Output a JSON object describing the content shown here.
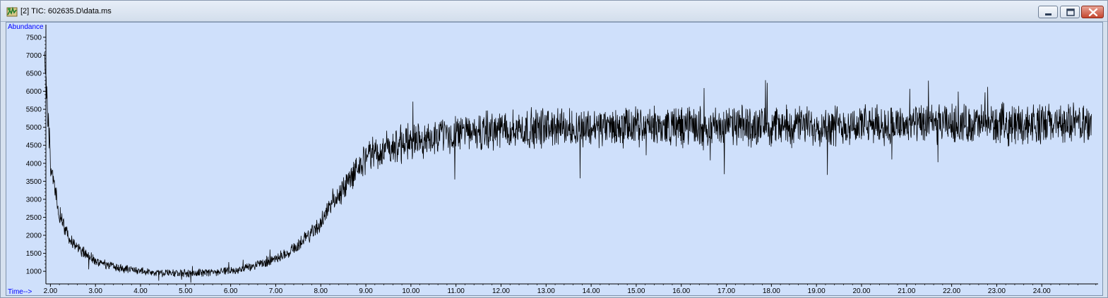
{
  "window": {
    "title": "[2] TIC: 602635.D\\data.ms",
    "icon": "chromatogram-app-icon",
    "buttons": [
      "minimize-icon",
      "maximize-icon",
      "close-icon"
    ]
  },
  "colors": {
    "plot_background": "#cfe0fb",
    "trace": "#000000",
    "axis_label": "#0000ff",
    "close_button": "#c4462f"
  },
  "chart_data": {
    "type": "line",
    "title": "",
    "ylabel": "Abundance",
    "xlabel": "Time-->",
    "xlim": [
      1.9,
      25.25
    ],
    "ylim": [
      650,
      7850
    ],
    "x_ticks": [
      2.0,
      3.0,
      4.0,
      5.0,
      6.0,
      7.0,
      8.0,
      9.0,
      10.0,
      11.0,
      12.0,
      13.0,
      14.0,
      15.0,
      16.0,
      17.0,
      18.0,
      19.0,
      20.0,
      21.0,
      22.0,
      23.0,
      24.0
    ],
    "x_tick_labels": [
      "2.00",
      "3.00",
      "4.00",
      "5.00",
      "6.00",
      "7.00",
      "8.00",
      "9.00",
      "10.00",
      "11.00",
      "12.00",
      "13.00",
      "14.00",
      "15.00",
      "16.00",
      "17.00",
      "18.00",
      "19.00",
      "20.00",
      "21.00",
      "22.00",
      "23.00",
      "24.00"
    ],
    "y_ticks": [
      1000,
      1500,
      2000,
      2500,
      3000,
      3500,
      4000,
      4500,
      5000,
      5500,
      6000,
      6500,
      7000,
      7500
    ],
    "y_tick_labels": [
      "1000",
      "1500",
      "2000",
      "2500",
      "3000",
      "3500",
      "4000",
      "4500",
      "5000",
      "5500",
      "6000",
      "6500",
      "7000",
      "7500"
    ],
    "grid": false,
    "series": [
      {
        "x": [
          1.87,
          1.95,
          2.0,
          2.1,
          2.2,
          2.35,
          2.5,
          2.75,
          3.0,
          3.25,
          3.5,
          3.75,
          4.0,
          4.25,
          4.5,
          4.75,
          5.0,
          5.25,
          5.5,
          5.75,
          6.0,
          6.25,
          6.5,
          6.75,
          7.0,
          7.25,
          7.5,
          7.75,
          8.0,
          8.25,
          8.5,
          8.75,
          9.0,
          9.25,
          9.5,
          9.75,
          10.0,
          10.5,
          11.0,
          11.5,
          12.0,
          12.5,
          13.0,
          13.5,
          14.0,
          15.0,
          16.0,
          17.0,
          18.0,
          19.0,
          20.0,
          21.0,
          22.0,
          23.0,
          24.0,
          25.1
        ],
        "y": [
          6800,
          5200,
          4000,
          3200,
          2600,
          2100,
          1800,
          1500,
          1300,
          1180,
          1100,
          1040,
          1000,
          970,
          960,
          950,
          950,
          955,
          970,
          990,
          1020,
          1070,
          1140,
          1230,
          1350,
          1520,
          1740,
          2020,
          2350,
          2800,
          3300,
          3800,
          4100,
          4300,
          4450,
          4550,
          4620,
          4720,
          4800,
          4880,
          4920,
          4960,
          4990,
          5000,
          5000,
          5010,
          5020,
          5030,
          5040,
          5050,
          5060,
          5070,
          5080,
          5090,
          5100,
          5100
        ]
      }
    ]
  }
}
